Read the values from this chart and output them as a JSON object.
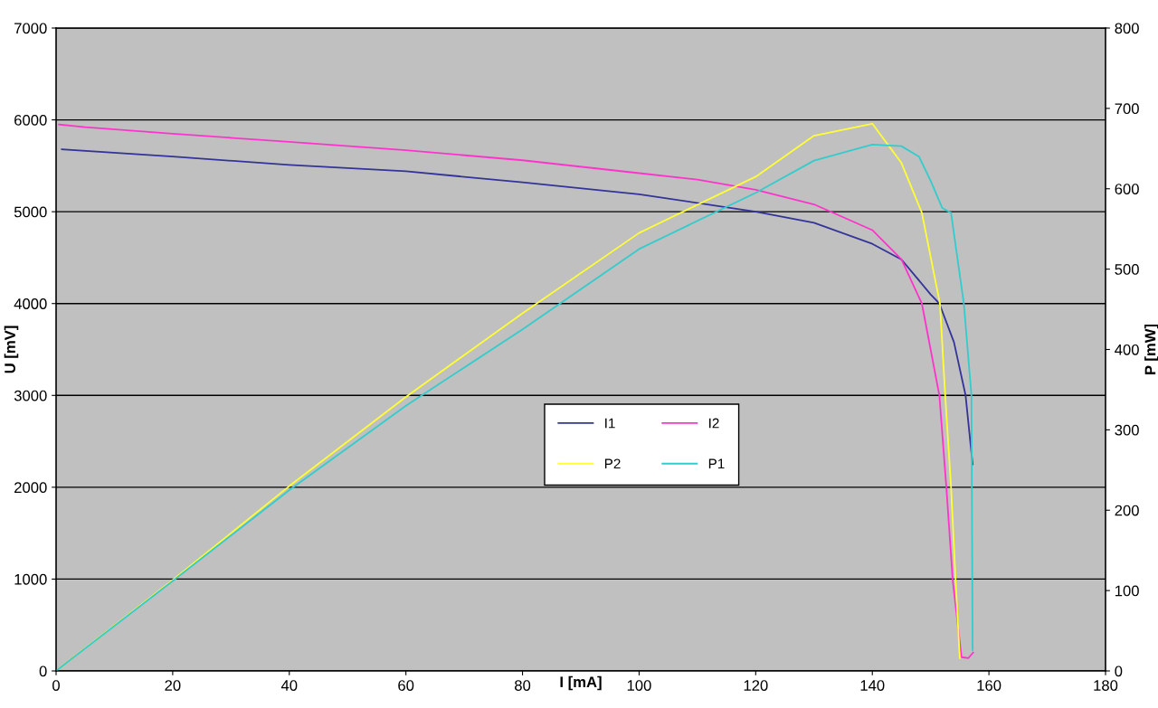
{
  "chart_data": {
    "type": "line",
    "xlabel": "I [mA]",
    "ylabel": "U [mV]",
    "y2label": "P [mW]",
    "xlim": [
      0,
      180
    ],
    "xticks": [
      0,
      20,
      40,
      60,
      80,
      100,
      120,
      140,
      160,
      180
    ],
    "ylim": [
      0,
      7000
    ],
    "yticks": [
      0,
      1000,
      2000,
      3000,
      4000,
      5000,
      6000,
      7000
    ],
    "y2lim": [
      0,
      800
    ],
    "y2ticks": [
      0,
      100,
      200,
      300,
      400,
      500,
      600,
      700,
      800
    ],
    "grid": "y",
    "legend": "center",
    "marker": "none",
    "line_style": "solid",
    "series": [
      {
        "name": "I1",
        "color": "#333399",
        "x": [
          1,
          20,
          40,
          60,
          80,
          100,
          120,
          130,
          140,
          145,
          150,
          151.5,
          154,
          156,
          157.2
        ],
        "values": [
          5680,
          5600,
          5510,
          5440,
          5320,
          5190,
          5000,
          4880,
          4650,
          4480,
          4100,
          4000,
          3580,
          3000,
          2250
        ]
      },
      {
        "name": "I2",
        "color": "#ff33cc",
        "x": [
          0.5,
          5,
          20,
          40,
          60,
          80,
          100,
          110,
          120,
          130,
          140,
          145,
          148.5,
          151.5,
          152.7,
          153.8,
          155.3,
          156.5,
          157.3
        ],
        "values": [
          5950,
          5920,
          5850,
          5760,
          5670,
          5560,
          5420,
          5350,
          5240,
          5080,
          4800,
          4480,
          4000,
          3000,
          2000,
          980,
          150,
          140,
          200
        ]
      },
      {
        "name": "P2",
        "color": "#ffff33",
        "axis": "y2",
        "x": [
          0,
          20,
          40,
          60,
          80,
          100,
          120,
          130,
          140,
          145,
          148.5,
          151.6,
          152.5,
          153.5,
          154.3,
          155
        ],
        "values": [
          0,
          113,
          230,
          341,
          445,
          545,
          615,
          666,
          681,
          632,
          570,
          457,
          343,
          229,
          111,
          16
        ]
      },
      {
        "name": "P1",
        "color": "#33cccc",
        "axis": "y2",
        "x": [
          0,
          20,
          40,
          60,
          80,
          100,
          120,
          130,
          140,
          145,
          148,
          150,
          152,
          153.5,
          155.7,
          157,
          157.2
        ],
        "values": [
          0,
          112,
          225,
          330,
          425,
          525,
          595,
          635,
          655,
          653,
          640,
          610,
          576,
          570,
          457,
          343,
          26
        ]
      }
    ]
  }
}
